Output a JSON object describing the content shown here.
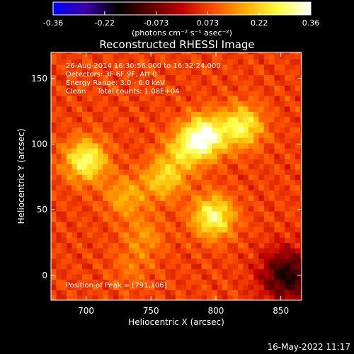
{
  "chart_data": {
    "type": "heatmap",
    "title": "Reconstructed RHESSI Image",
    "xlabel": "Heliocentric X (arcsec)",
    "ylabel": "Heliocentric Y (arcsec)",
    "xlim": [
      673,
      866
    ],
    "ylim": [
      -19,
      170
    ],
    "x_ticks": [
      700,
      750,
      800,
      850
    ],
    "y_ticks": [
      0,
      50,
      100,
      150
    ],
    "colorbar": {
      "min": -0.36,
      "max": 0.36,
      "ticks": [
        "-0.36",
        "-0.22",
        "-0.073",
        "0.073",
        "0.22",
        "0.36"
      ],
      "unit_label": "(photons cm⁻² s⁻¹ asec⁻²)",
      "colors": [
        "#0000ff",
        "#3b00a8",
        "#000000",
        "#5a0000",
        "#c00000",
        "#ff5000",
        "#ffb000",
        "#ffff40",
        "#ffffff"
      ]
    },
    "annotations": [
      "26-Aug-2014 16:30:56.000 to 16:32:24.000",
      "Detectors: 3F 6F 9F, Att 0",
      "Energy Range: 3.0 - 6.0 keV",
      "Clean     Total counts: 1.08E+04"
    ],
    "peak_label": "Position of Peak = [791,106]",
    "peak": [
      791,
      106
    ],
    "sources": [
      {
        "x": 791,
        "y": 106,
        "value": 0.36
      },
      {
        "x": 820,
        "y": 114,
        "value": 0.28
      },
      {
        "x": 700,
        "y": 88,
        "value": 0.3
      },
      {
        "x": 798,
        "y": 45,
        "value": 0.3
      },
      {
        "x": 760,
        "y": 74,
        "value": 0.22
      },
      {
        "x": 730,
        "y": 60,
        "value": 0.18
      },
      {
        "x": 775,
        "y": 95,
        "value": 0.2
      },
      {
        "x": 745,
        "y": 30,
        "value": 0.15
      },
      {
        "x": 735,
        "y": 5,
        "value": 0.12
      }
    ],
    "background_level": 0.07,
    "negative_region": {
      "x": 855,
      "y": 0,
      "value": -0.15
    }
  },
  "footer": {
    "timestamp": "16-May-2022 11:17"
  }
}
